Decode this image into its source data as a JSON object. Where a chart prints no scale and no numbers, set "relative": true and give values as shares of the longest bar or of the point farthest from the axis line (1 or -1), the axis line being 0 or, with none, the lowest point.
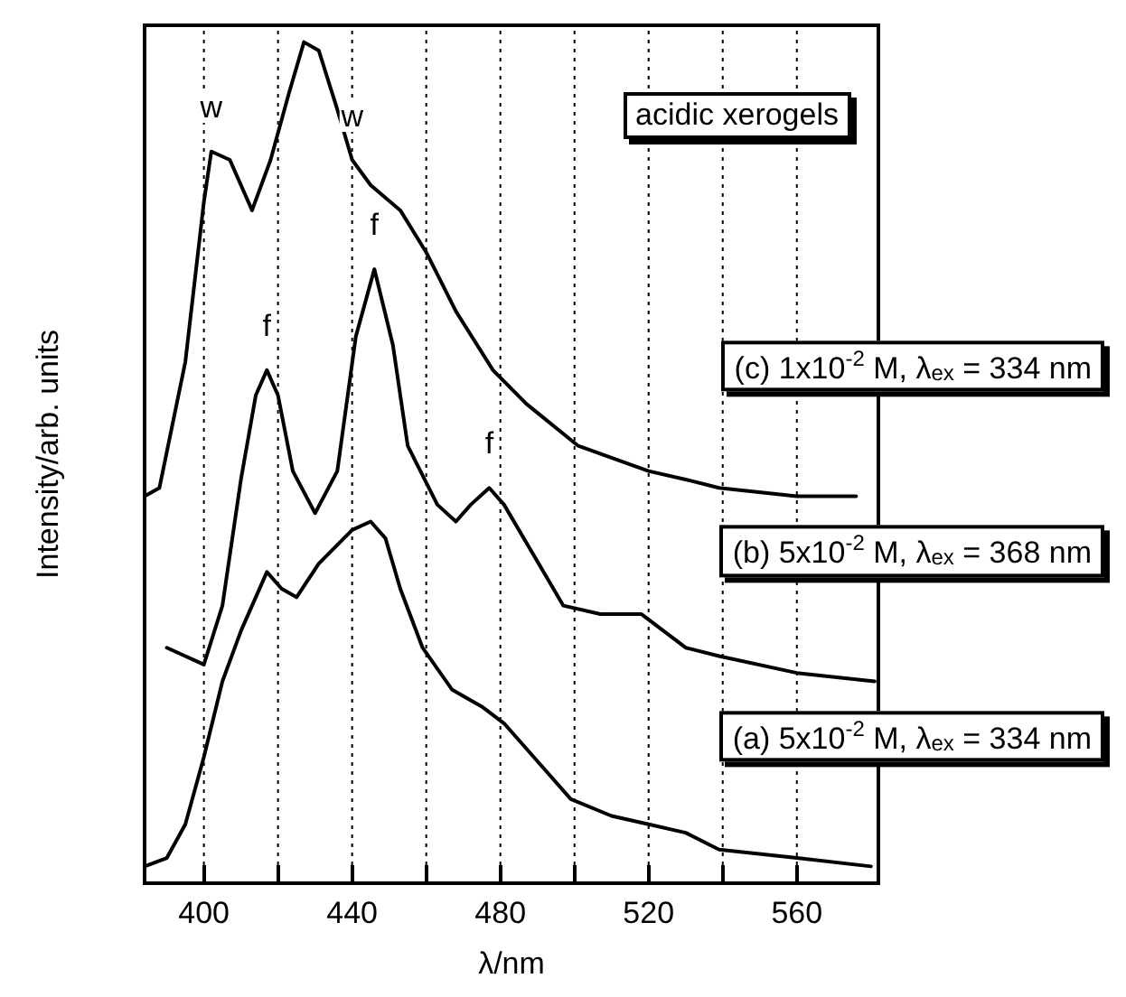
{
  "chart_data": {
    "type": "line",
    "relative": true,
    "xlabel": "λ/nm",
    "ylabel": "Intensity/arb. units",
    "xlim": [
      384,
      582
    ],
    "xticks": [
      400,
      {
        "value": 420,
        "label": null
      },
      440,
      {
        "value": 460,
        "label": null
      },
      480,
      {
        "value": 500,
        "label": null
      },
      520,
      {
        "value": 540,
        "label": null
      },
      560
    ],
    "grid": "x",
    "line_style": "solid",
    "marker": "none",
    "annotations": [
      "acidic xerogels",
      {
        "text": "w",
        "x": 402,
        "y": 0.87
      },
      {
        "text": "w",
        "x": 440,
        "y": 0.86
      },
      {
        "text": "f",
        "x": 417,
        "y": 0.61
      },
      {
        "text": "f",
        "x": 446,
        "y": 0.73
      },
      {
        "text": "f",
        "x": 477,
        "y": 0.47
      }
    ],
    "series": [
      {
        "name": "(c) 1x10$^{-2}$ M, λ$_{ex}$ = 334 nm",
        "color": "#000000",
        "x": [
          384,
          388,
          395,
          400,
          402,
          407,
          413,
          418,
          423,
          427,
          431,
          436,
          440,
          445,
          453,
          460,
          468,
          478,
          487,
          501,
          520,
          530,
          539,
          560,
          576
        ],
        "values": [
          0.46,
          0.47,
          0.62,
          0.81,
          0.87,
          0.86,
          0.8,
          0.86,
          0.94,
          1.0,
          0.99,
          0.92,
          0.86,
          0.83,
          0.8,
          0.75,
          0.68,
          0.61,
          0.57,
          0.52,
          0.49,
          0.48,
          0.47,
          0.46,
          0.46
        ]
      },
      {
        "name": "(b) 5x10$^{-2}$ M, λ$_{ex}$ = 368 nm",
        "color": "#000000",
        "x": [
          390,
          400,
          405,
          410,
          414,
          417,
          420,
          424,
          430,
          436,
          441,
          446,
          451,
          455,
          463,
          468,
          472,
          477,
          481,
          489,
          497,
          507,
          518,
          530,
          539,
          560,
          581
        ],
        "values": [
          0.28,
          0.26,
          0.33,
          0.48,
          0.58,
          0.61,
          0.58,
          0.49,
          0.44,
          0.49,
          0.65,
          0.73,
          0.64,
          0.52,
          0.45,
          0.43,
          0.45,
          0.47,
          0.45,
          0.39,
          0.33,
          0.32,
          0.32,
          0.28,
          0.27,
          0.25,
          0.24
        ]
      },
      {
        "name": "(a) 5x10$^{-2}$ M, λ$_{ex}$ = 334 nm",
        "color": "#000000",
        "x": [
          384,
          390,
          395,
          400,
          405,
          410,
          417,
          421,
          425,
          431,
          440,
          445,
          449,
          453,
          459,
          467,
          475,
          481,
          489,
          499,
          510,
          520,
          530,
          539,
          560,
          580
        ],
        "values": [
          0.02,
          0.03,
          0.07,
          0.15,
          0.24,
          0.3,
          0.37,
          0.35,
          0.34,
          0.38,
          0.42,
          0.43,
          0.41,
          0.35,
          0.28,
          0.23,
          0.21,
          0.19,
          0.15,
          0.1,
          0.08,
          0.07,
          0.06,
          0.04,
          0.03,
          0.02
        ]
      }
    ]
  }
}
